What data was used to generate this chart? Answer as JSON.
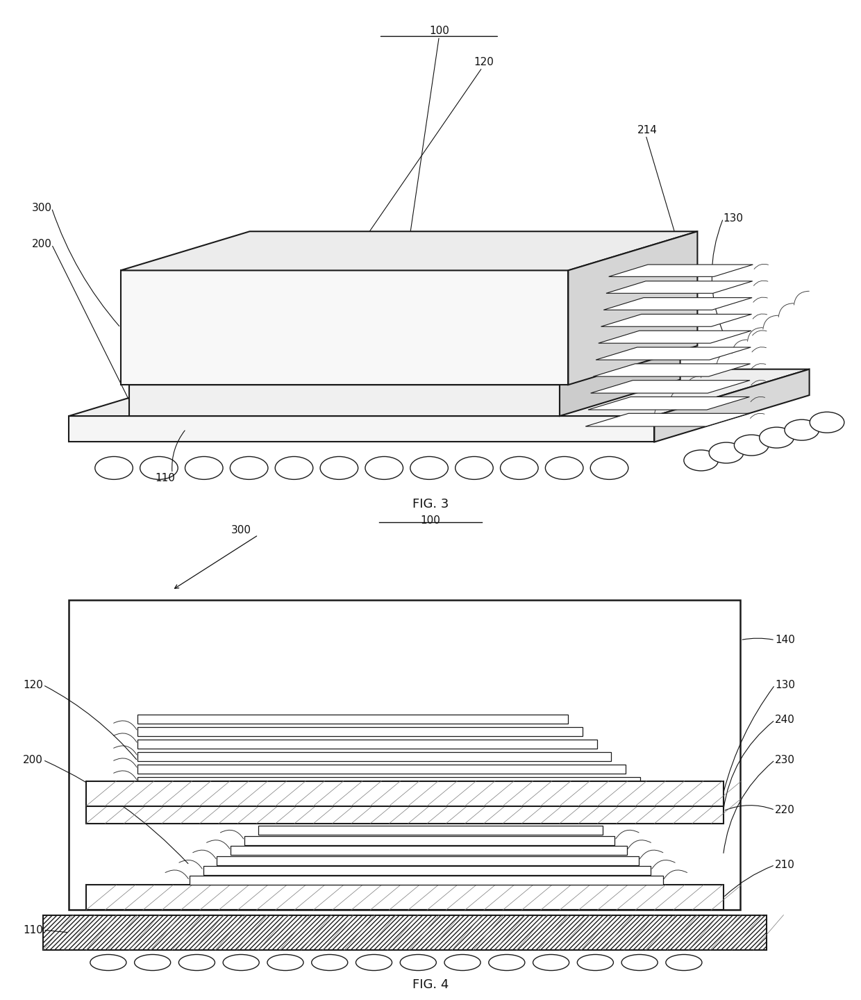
{
  "fig_width": 12.4,
  "fig_height": 14.4,
  "dpi": 100,
  "background_color": "#ffffff",
  "line_color": "#1a1a1a",
  "hatch_color": "#555555",
  "fig3": {
    "title": "FIG. 3",
    "label_100": "100",
    "label_110": "110",
    "label_120": "120",
    "label_130": "130",
    "label_200": "200",
    "label_214": "214",
    "label_300": "300"
  },
  "fig4": {
    "title": "FIG. 4",
    "label_100": "100",
    "label_110": "110",
    "label_120": "120",
    "label_130": "130",
    "label_140": "140",
    "label_200": "200",
    "label_210": "210",
    "label_220": "220",
    "label_230": "230",
    "label_240": "240",
    "label_300": "300"
  }
}
